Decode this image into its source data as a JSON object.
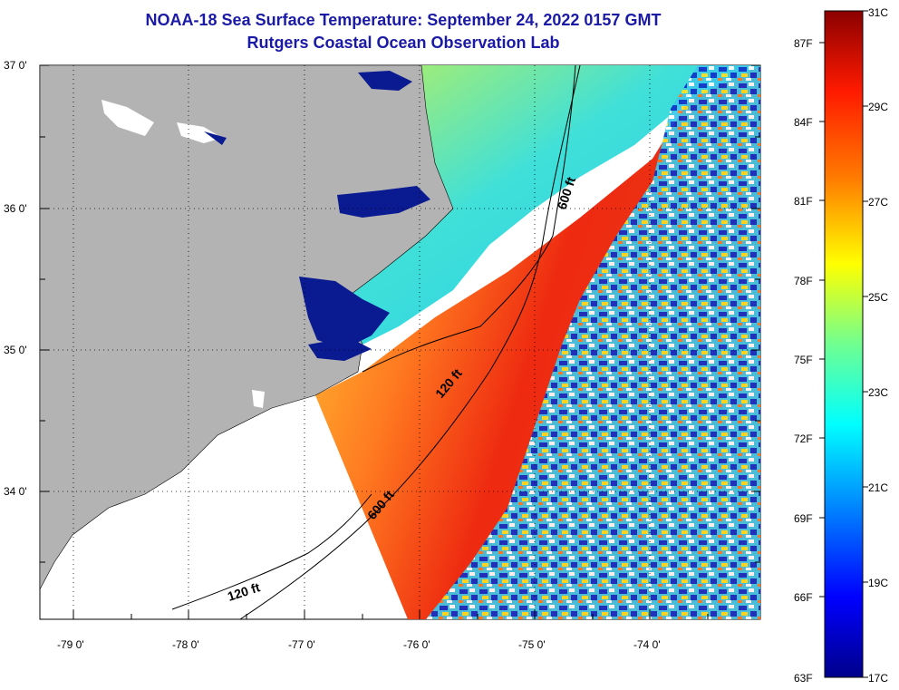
{
  "title": "NOAA-18 Sea Surface Temperature:  September 24, 2022 0157 GMT",
  "subtitle": "Rutgers Coastal Ocean Observation Lab",
  "lat_labels": [
    "37 0'",
    "36 0'",
    "35 0'",
    "34 0'"
  ],
  "lon_labels": [
    "-79 0'",
    "-78 0'",
    "-77 0'",
    "-76 0'",
    "-75 0'",
    "-74 0'"
  ],
  "contour_labels": {
    "upper_600": "600 ft",
    "upper_120": "120 ft",
    "lower_600": "600 ft",
    "lower_120": "120 ft"
  },
  "colorbar": {
    "fahrenheit": [
      "87F",
      "84F",
      "81F",
      "78F",
      "75F",
      "72F",
      "69F",
      "66F",
      "63F"
    ],
    "celsius": [
      "31C",
      "29C",
      "27C",
      "25C",
      "23C",
      "21C",
      "19C",
      "17C"
    ],
    "stops": [
      "#8b0000",
      "#ff2200",
      "#ff8c00",
      "#ffff00",
      "#7fff7f",
      "#00ffff",
      "#0080ff",
      "#0000ff",
      "#00008b"
    ]
  },
  "colors": {
    "land": "#b3b3b3",
    "no_data": "#ffffff",
    "title": "#1a1aa6",
    "warm_water": "#ee3a18",
    "cool_water": "#5ad8d0",
    "inland_water": "#0a1a90"
  }
}
